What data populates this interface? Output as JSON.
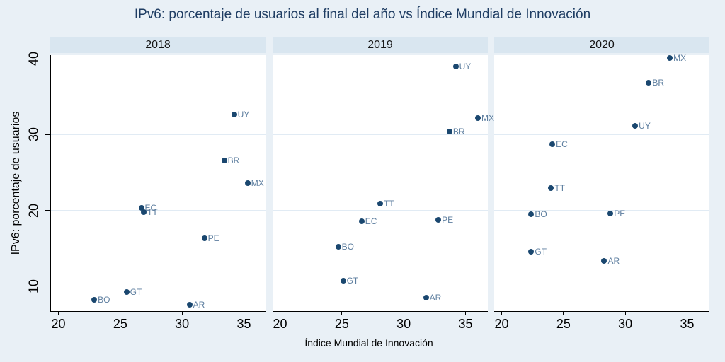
{
  "title": "IPv6: porcentaje de usuarios al final del año vs Índice Mundial de Innovación",
  "chart_data": {
    "type": "scatter",
    "title": "IPv6: porcentaje de usuarios al final del año vs Índice Mundial de Innovación",
    "xlabel": "Índice Mundial de Innovación",
    "ylabel": "IPv6: porcentaje de usuarios",
    "facet_variable": "year",
    "x_ticks": [
      20,
      25,
      30,
      35
    ],
    "y_ticks": [
      10,
      20,
      30,
      40
    ],
    "xlim": [
      19.4,
      36.8
    ],
    "ylim": [
      6.7,
      40.5
    ],
    "grid": "horizontal gridlines only",
    "legend": "none (country codes label each marker)",
    "marker_label_position": "right",
    "facets": [
      {
        "label": "2018",
        "points": [
          {
            "label": "BO",
            "x": 22.9,
            "y": 8.2
          },
          {
            "label": "GT",
            "x": 25.5,
            "y": 9.2
          },
          {
            "label": "AR",
            "x": 30.6,
            "y": 7.5
          },
          {
            "label": "PE",
            "x": 31.8,
            "y": 16.3
          },
          {
            "label": "EC",
            "x": 26.7,
            "y": 20.3
          },
          {
            "label": "TT",
            "x": 26.9,
            "y": 19.8
          },
          {
            "label": "MX",
            "x": 35.3,
            "y": 23.6
          },
          {
            "label": "BR",
            "x": 33.4,
            "y": 26.6
          },
          {
            "label": "UY",
            "x": 34.2,
            "y": 32.7
          }
        ]
      },
      {
        "label": "2019",
        "points": [
          {
            "label": "AR",
            "x": 31.8,
            "y": 8.5
          },
          {
            "label": "GT",
            "x": 25.1,
            "y": 10.7
          },
          {
            "label": "BO",
            "x": 24.7,
            "y": 15.2
          },
          {
            "label": "EC",
            "x": 26.6,
            "y": 18.6
          },
          {
            "label": "PE",
            "x": 32.8,
            "y": 18.7
          },
          {
            "label": "TT",
            "x": 28.1,
            "y": 20.9
          },
          {
            "label": "BR",
            "x": 33.7,
            "y": 30.4
          },
          {
            "label": "MX",
            "x": 36.0,
            "y": 32.2
          },
          {
            "label": "UY",
            "x": 34.2,
            "y": 39.0
          }
        ]
      },
      {
        "label": "2020",
        "points": [
          {
            "label": "AR",
            "x": 28.3,
            "y": 13.3
          },
          {
            "label": "GT",
            "x": 22.4,
            "y": 14.5
          },
          {
            "label": "BO",
            "x": 22.4,
            "y": 19.5
          },
          {
            "label": "PE",
            "x": 28.8,
            "y": 19.6
          },
          {
            "label": "TT",
            "x": 24.0,
            "y": 22.9
          },
          {
            "label": "EC",
            "x": 24.1,
            "y": 28.7
          },
          {
            "label": "UY",
            "x": 30.8,
            "y": 31.2
          },
          {
            "label": "BR",
            "x": 31.9,
            "y": 36.9
          },
          {
            "label": "MX",
            "x": 33.6,
            "y": 40.1
          }
        ]
      }
    ],
    "colors": {
      "marker": "#1a476f",
      "marker_label": "#5d7e9f",
      "background": "#e9f0f6",
      "header_band": "#d9e6f0",
      "plot_background": "#ffffff",
      "gridline": "#e1ebf4",
      "title_text": "#1f3d63",
      "axis_text": "#000000"
    }
  }
}
